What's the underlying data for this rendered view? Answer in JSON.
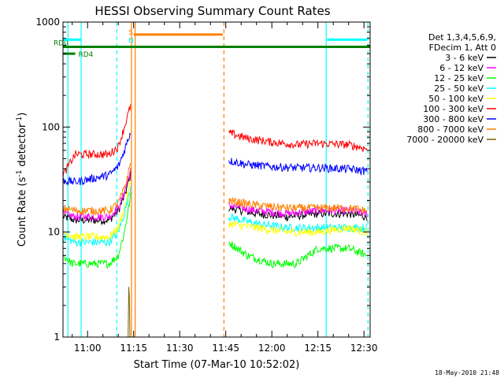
{
  "chart_data": {
    "type": "line",
    "title": "HESSI Observing Summary Count Rates",
    "xlabel": "Start Time (07-Mar-10 10:52:02)",
    "ylabel": "Count Rate (s⁻¹ detector⁻¹)",
    "ylabel_main": "Count Rate (s",
    "ylabel_sup1": "-1",
    "ylabel_mid": " detector",
    "ylabel_sup2": "-1",
    "ylabel_end": ")",
    "yscale": "log",
    "ylim": [
      1,
      1000
    ],
    "xlim_minutes": [
      652,
      752
    ],
    "x_ticks": [
      {
        "label": "11:00",
        "minute": 660
      },
      {
        "label": "11:15",
        "minute": 675
      },
      {
        "label": "11:30",
        "minute": 690
      },
      {
        "label": "11:45",
        "minute": 705
      },
      {
        "label": "12:00",
        "minute": 720
      },
      {
        "label": "12:15",
        "minute": 735
      },
      {
        "label": "12:30",
        "minute": 750
      }
    ],
    "y_ticks": [
      {
        "label": "1",
        "value": 1
      },
      {
        "label": "10",
        "value": 10
      },
      {
        "label": "100",
        "value": 100
      },
      {
        "label": "1000",
        "value": 1000
      }
    ],
    "legend": {
      "position": "right",
      "header": [
        "Det 1,3,4,5,6,9,",
        "FDecim 1, Att 0"
      ]
    },
    "series": [
      {
        "name": "3 - 6 keV",
        "color": "#000000",
        "segments": [
          {
            "x": [
              652,
              656,
              663,
              667,
              670,
              672,
              674
            ],
            "y": [
              14,
              13,
              13,
              13,
              16,
              22,
              35
            ]
          },
          {
            "x": [
              706,
              715,
              725,
              735,
              745,
              751
            ],
            "y": [
              17,
              15,
              14,
              15,
              15,
              14
            ]
          }
        ]
      },
      {
        "name": "6 - 12 keV",
        "color": "#ff00ff",
        "segments": [
          {
            "x": [
              652,
              656,
              663,
              667,
              670,
              672,
              674
            ],
            "y": [
              15,
              14,
              14,
              14,
              17,
              24,
              38
            ]
          },
          {
            "x": [
              706,
              715,
              725,
              735,
              745,
              751
            ],
            "y": [
              18,
              16,
              15,
              16,
              16,
              15
            ]
          }
        ]
      },
      {
        "name": "12 - 25 keV",
        "color": "#00ff00",
        "segments": [
          {
            "x": [
              652,
              655,
              663,
              667,
              670,
              672,
              674
            ],
            "y": [
              6,
              5,
              5,
              5,
              6,
              10,
              22
            ]
          },
          {
            "x": [
              706,
              712,
              720,
              728,
              735,
              745,
              751
            ],
            "y": [
              8,
              6,
              5,
              5,
              7,
              7,
              6
            ]
          }
        ]
      },
      {
        "name": "25 - 50 keV",
        "color": "#00ffff",
        "segments": [
          {
            "x": [
              652,
              656,
              663,
              667,
              670,
              672,
              674
            ],
            "y": [
              9,
              8,
              8,
              8,
              10,
              15,
              27
            ]
          },
          {
            "x": [
              706,
              715,
              725,
              735,
              745,
              751
            ],
            "y": [
              14,
              12,
              11,
              11,
              11,
              11
            ]
          }
        ]
      },
      {
        "name": "50 - 100 keV",
        "color": "#ffff00",
        "segments": [
          {
            "x": [
              652,
              656,
              663,
              667,
              670,
              672,
              674
            ],
            "y": [
              10,
              9,
              9,
              9,
              11,
              17,
              30
            ]
          },
          {
            "x": [
              706,
              715,
              725,
              735,
              745,
              751
            ],
            "y": [
              12,
              11,
              10,
              10,
              11,
              10
            ]
          }
        ]
      },
      {
        "name": "100 - 300 keV",
        "color": "#ff0000",
        "segments": [
          {
            "x": [
              652,
              656,
              663,
              667,
              670,
              672,
              674
            ],
            "y": [
              35,
              55,
              55,
              55,
              65,
              100,
              160
            ]
          },
          {
            "x": [
              706,
              712,
              720,
              728,
              735,
              745,
              751
            ],
            "y": [
              88,
              78,
              72,
              68,
              70,
              68,
              62
            ]
          }
        ]
      },
      {
        "name": "300 - 800 keV",
        "color": "#0000ff",
        "segments": [
          {
            "x": [
              652,
              656,
              663,
              667,
              670,
              672,
              674
            ],
            "y": [
              31,
              30,
              33,
              35,
              42,
              60,
              90
            ]
          },
          {
            "x": [
              706,
              712,
              720,
              728,
              735,
              745,
              751
            ],
            "y": [
              48,
              44,
              42,
              41,
              41,
              40,
              38
            ]
          }
        ]
      },
      {
        "name": "800 - 7000 keV",
        "color": "#ff8000",
        "segments": [
          {
            "x": [
              652,
              656,
              663,
              667,
              670,
              672,
              674
            ],
            "y": [
              17,
              16,
              16,
              16,
              19,
              26,
              45
            ]
          },
          {
            "x": [
              706,
              715,
              725,
              735,
              745,
              751
            ],
            "y": [
              20,
              18,
              17,
              17,
              17,
              16
            ]
          }
        ]
      },
      {
        "name": "7000 - 20000 keV",
        "color": "#806000",
        "segments": [
          {
            "x": [
              673.2,
              673.4,
              673.6,
              673.8
            ],
            "y": [
              1,
              3,
              2.5,
              1
            ]
          }
        ]
      }
    ],
    "flags": [
      {
        "name": "RD0",
        "color": "#008000",
        "y": 580,
        "x_start": 652,
        "x_end": 752,
        "label_x": 652
      },
      {
        "name": "RD4",
        "color": "#008000",
        "y": 500,
        "x_start": 652,
        "x_end": 656,
        "label_x": 657
      },
      {
        "name": "S",
        "color": "#ff8000",
        "y": 760,
        "x_start": 675,
        "x_end": 704,
        "label_x": 673.3
      },
      {
        "name": "N",
        "color": "#00ffff",
        "y": 680,
        "x_start": 652,
        "x_end": 658,
        "label_x": 673.3
      },
      {
        "name": "",
        "color": "#00ffff",
        "y": 680,
        "x_start": 738,
        "x_end": 751,
        "label_x": 0
      }
    ],
    "vlines": [
      {
        "minute": 653.6,
        "color": "#00ffff",
        "style": "solid"
      },
      {
        "minute": 657.9,
        "color": "#00ffff",
        "style": "solid"
      },
      {
        "minute": 669.5,
        "color": "#00ffff",
        "style": "dashed"
      },
      {
        "minute": 674.3,
        "color": "#ff8000",
        "style": "solid"
      },
      {
        "minute": 675.5,
        "color": "#ff8000",
        "style": "solid"
      },
      {
        "minute": 704.4,
        "color": "#ff8000",
        "style": "dashed"
      },
      {
        "minute": 737.7,
        "color": "#00ffff",
        "style": "solid"
      },
      {
        "minute": 751.3,
        "color": "#00ffff",
        "style": "dashed"
      }
    ]
  },
  "footer_timestamp": "18-May-2010 21:48"
}
